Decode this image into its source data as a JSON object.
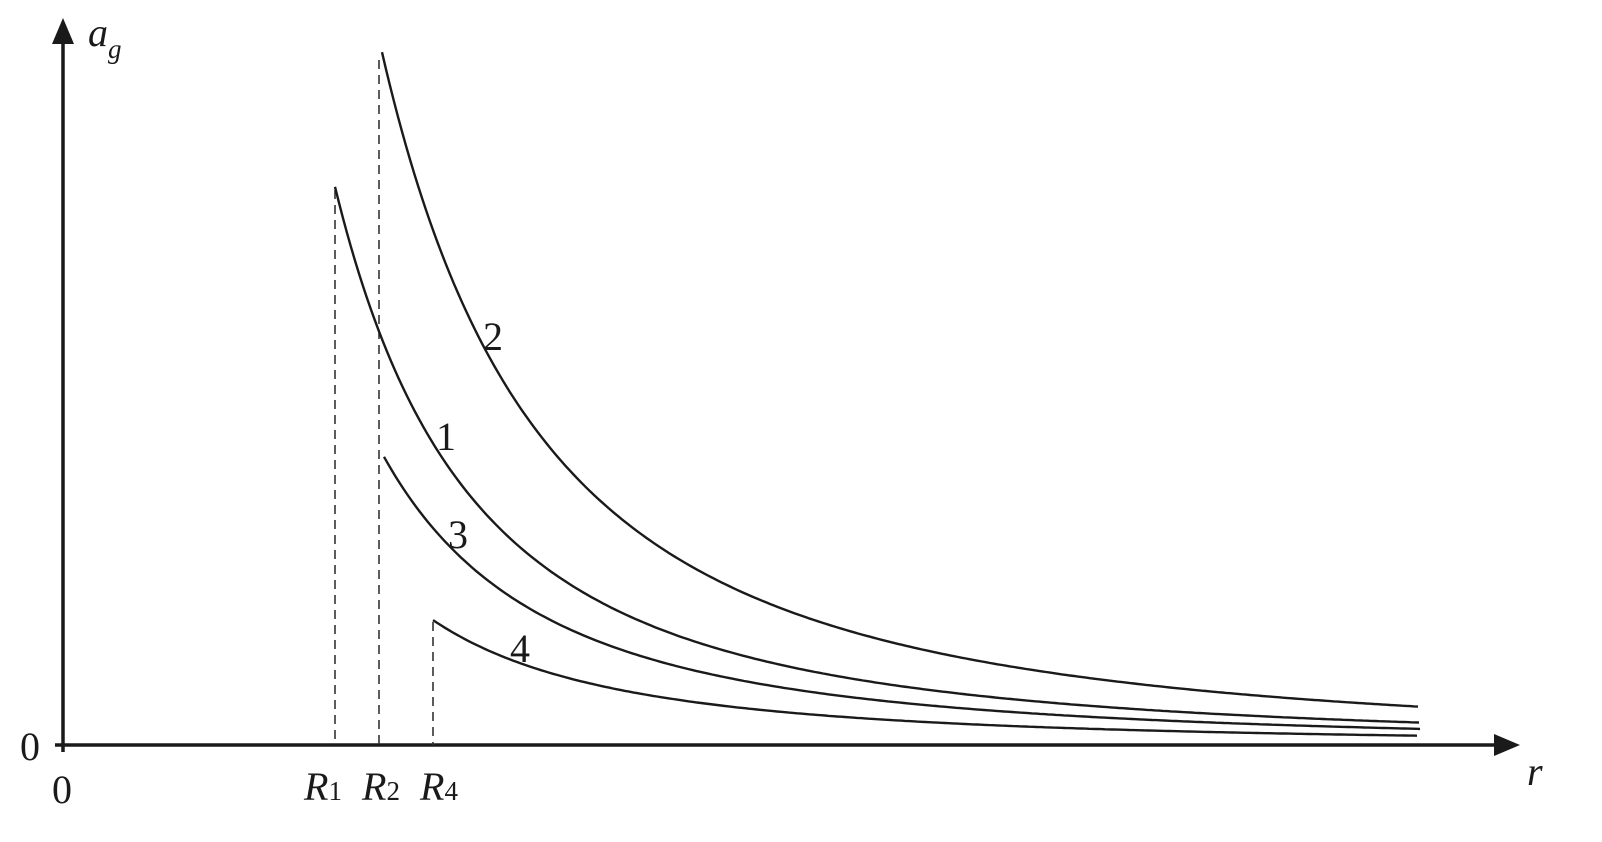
{
  "axes": {
    "y_label": {
      "text": "a",
      "sub": "g"
    },
    "x_label": "r",
    "y_origin": "0",
    "x_origin": "0"
  },
  "markers": [
    {
      "text": "R",
      "sub": "1"
    },
    {
      "text": "R",
      "sub": "2"
    },
    {
      "text": "R",
      "sub": "4"
    }
  ],
  "curves": [
    {
      "label": "1"
    },
    {
      "label": "2"
    },
    {
      "label": "3"
    },
    {
      "label": "4"
    }
  ]
}
